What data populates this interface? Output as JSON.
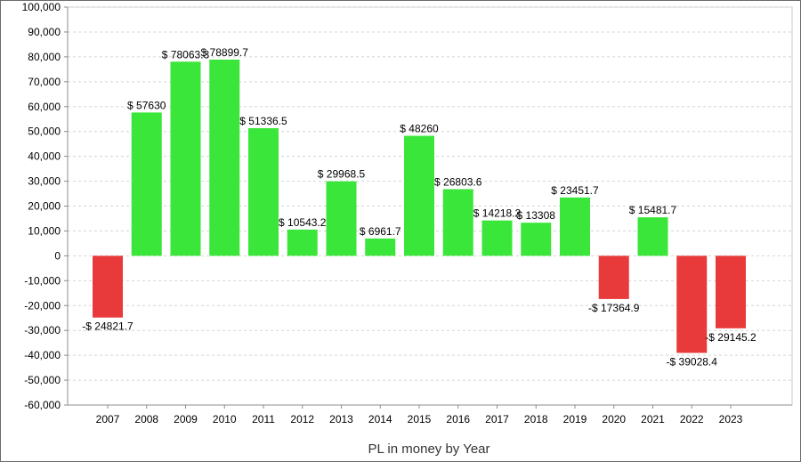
{
  "chart_data": {
    "type": "bar",
    "title": "",
    "xlabel": "PL in money by Year",
    "ylabel": "",
    "ylim": [
      -60000,
      100000
    ],
    "yticks": [
      100000,
      90000,
      80000,
      70000,
      60000,
      50000,
      40000,
      30000,
      20000,
      10000,
      0,
      -10000,
      -20000,
      -30000,
      -40000,
      -50000,
      -60000
    ],
    "ytick_labels": [
      "100,000",
      "90,000",
      "80,000",
      "70,000",
      "60,000",
      "50,000",
      "40,000",
      "30,000",
      "20,000",
      "10,000",
      "0",
      "-10,000",
      "-20,000",
      "-30,000",
      "-40,000",
      "-50,000",
      "-60,000"
    ],
    "grid": true,
    "legend": "none",
    "categories": [
      "2007",
      "2008",
      "2009",
      "2010",
      "2011",
      "2012",
      "2013",
      "2014",
      "2015",
      "2016",
      "2017",
      "2018",
      "2019",
      "2020",
      "2021",
      "2022",
      "2023"
    ],
    "values": [
      -24821.7,
      57630,
      78063.3,
      78899.7,
      51336.5,
      10543.2,
      29968.5,
      6961.7,
      48260,
      26803.6,
      14218.2,
      13308,
      23451.7,
      -17364.9,
      15481.7,
      -39028.4,
      -29145.2
    ],
    "data_labels": [
      "-$ 24821.7",
      "$ 57630",
      "$ 78063.3",
      "$ 78899.7",
      "$ 51336.5",
      "$ 10543.2",
      "$ 29968.5",
      "$ 6961.7",
      "$ 48260",
      "$ 26803.6",
      "$ 14218.2",
      "$ 13308",
      "$ 23451.7",
      "-$ 17364.9",
      "$ 15481.7",
      "-$ 39028.4",
      "-$ 29145.2"
    ],
    "colors": {
      "positive": "#3be63b",
      "negative": "#e8393b",
      "grid": "#d4d4d4",
      "axis": "#8c8c8c"
    }
  }
}
